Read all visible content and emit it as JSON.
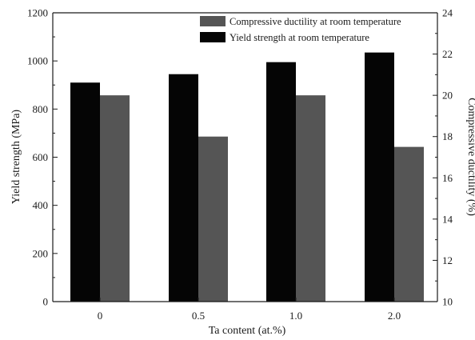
{
  "chart_data": {
    "type": "bar",
    "categories": [
      "0",
      "0.5",
      "1.0",
      "2.0"
    ],
    "xlabel": "Ta content (at.%)",
    "ylabel": "Yield strength (MPa)",
    "y2label": "Compressive ductility (%)",
    "ylim": [
      0,
      1200
    ],
    "y2lim": [
      10,
      24
    ],
    "yticks": [
      0,
      200,
      400,
      600,
      800,
      1000,
      1200
    ],
    "y2ticks": [
      10,
      12,
      14,
      16,
      18,
      20,
      22,
      24
    ],
    "legend_position": "top-right",
    "series": [
      {
        "name": "Yield strength at room temperature",
        "axis": "left",
        "color": "#050505",
        "values": [
          910,
          945,
          995,
          1035
        ]
      },
      {
        "name": "Compressive ductility at room temperature",
        "axis": "right",
        "color": "#555555",
        "values": [
          20.0,
          18.0,
          20.0,
          17.5
        ]
      }
    ],
    "legend_order": [
      1,
      0
    ]
  }
}
